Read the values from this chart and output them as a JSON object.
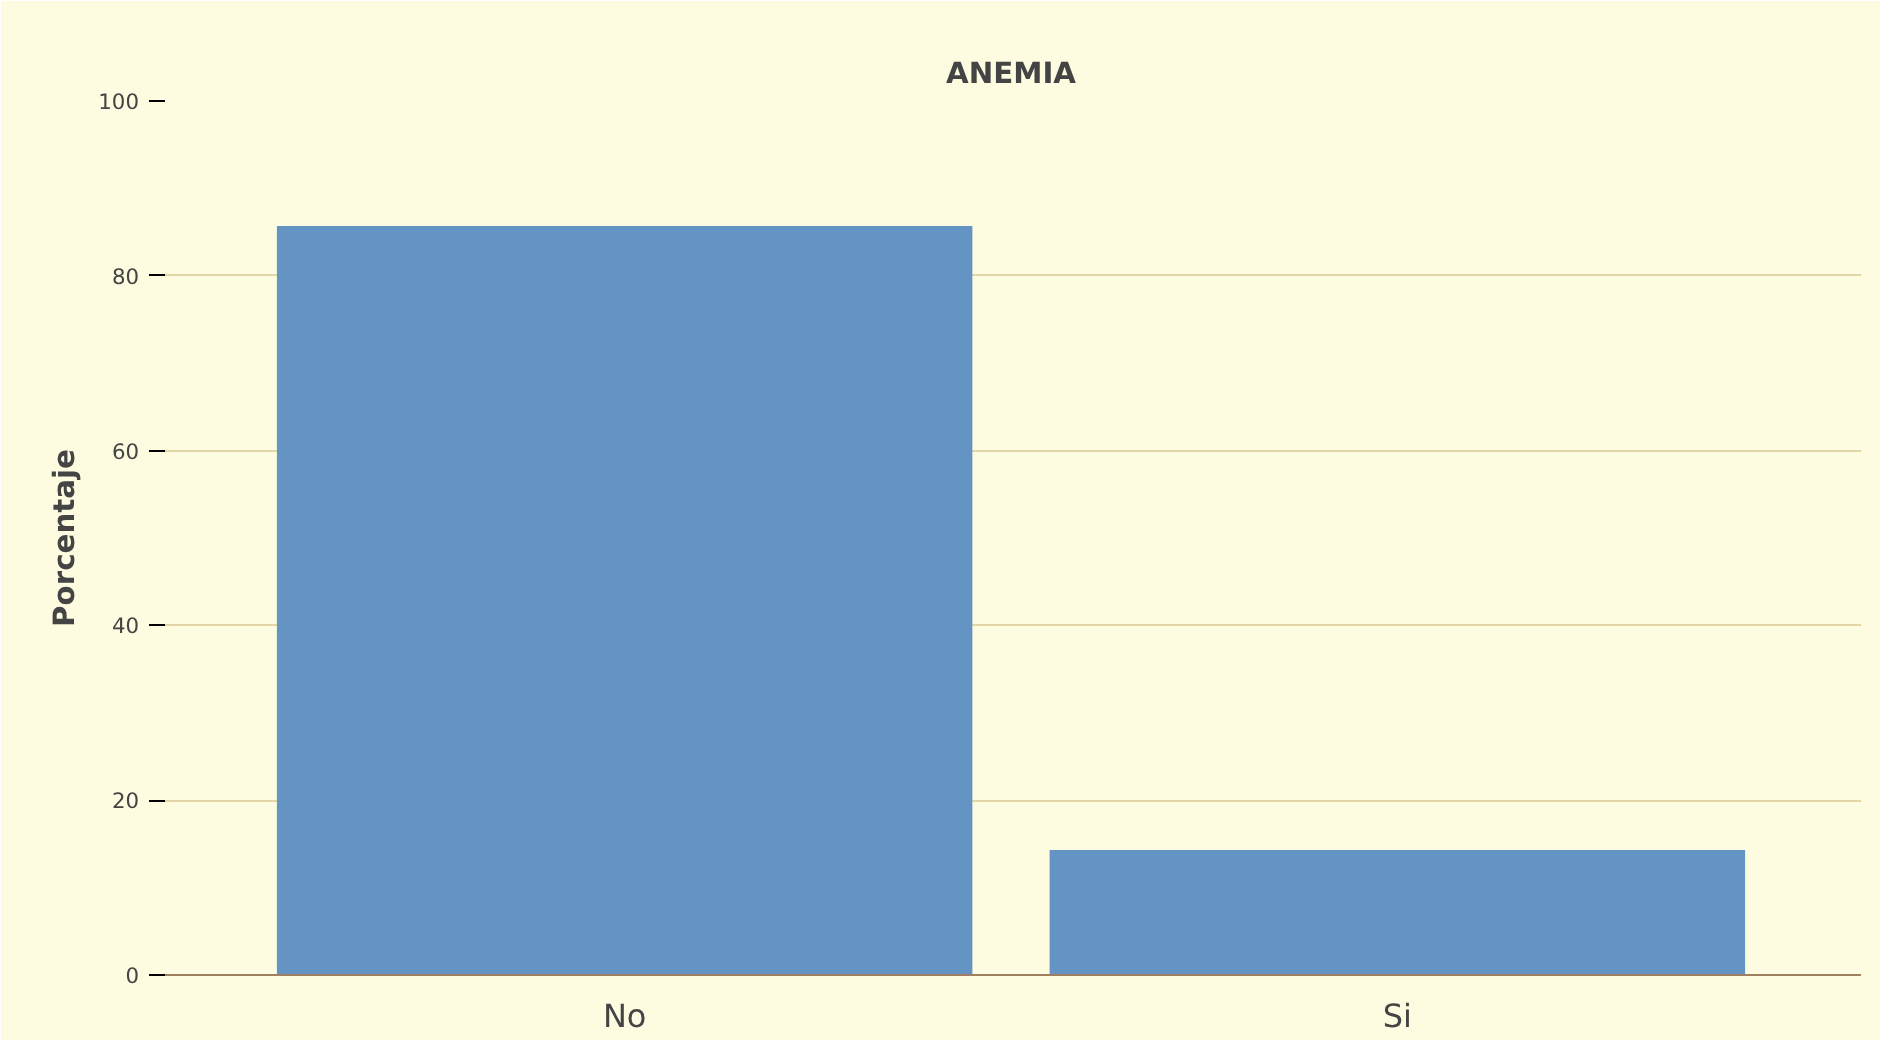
{
  "chart_data": {
    "type": "bar",
    "title": "ANEMIA",
    "ylabel": "Porcentaje",
    "categories": [
      "No",
      "Si"
    ],
    "values": [
      85.7,
      14.3
    ],
    "color": "#6394c4",
    "ylim": [
      0,
      100
    ],
    "yticks": [
      0,
      20,
      40,
      60,
      80,
      100
    ],
    "grid": "y"
  }
}
